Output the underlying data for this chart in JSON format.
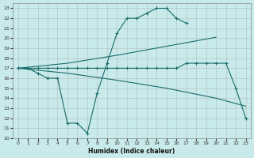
{
  "xlabel": "Humidex (Indice chaleur)",
  "bg_color": "#c8eaea",
  "line_color": "#1a6b6b",
  "grid_color": "#b0b0b0",
  "xlim": [
    -0.5,
    23.5
  ],
  "ylim": [
    10,
    23.5
  ],
  "xticks": [
    0,
    1,
    2,
    3,
    4,
    5,
    6,
    7,
    8,
    9,
    10,
    11,
    12,
    13,
    14,
    15,
    16,
    17,
    18,
    19,
    20,
    21,
    22,
    23
  ],
  "yticks": [
    10,
    11,
    12,
    13,
    14,
    15,
    16,
    17,
    18,
    19,
    20,
    21,
    22,
    23
  ],
  "lines": [
    {
      "x": [
        0,
        1,
        2,
        3,
        4,
        5,
        6,
        7,
        8,
        9,
        10,
        11,
        12,
        13,
        14,
        15,
        16,
        17
      ],
      "y": [
        17,
        17,
        16.5,
        16,
        16,
        11.5,
        11.5,
        10.5,
        14.5,
        17.5,
        20.5,
        22,
        22,
        22.5,
        23,
        23,
        22,
        21.5
      ],
      "marker": true
    },
    {
      "x": [
        0,
        5,
        10,
        15,
        20
      ],
      "y": [
        17,
        17.5,
        18.3,
        19.2,
        20.1
      ],
      "marker": false
    },
    {
      "x": [
        0,
        1,
        2,
        3,
        4,
        5,
        6,
        7,
        8,
        9,
        10,
        11,
        12,
        13,
        14,
        15,
        16,
        17,
        18,
        19,
        20,
        21,
        22,
        23
      ],
      "y": [
        17,
        17,
        17,
        17,
        17,
        17,
        17,
        17,
        17,
        17,
        17,
        17,
        17,
        17,
        17,
        17,
        17,
        17.5,
        17.5,
        17.5,
        17.5,
        17.5,
        15,
        12
      ],
      "marker": true
    },
    {
      "x": [
        0,
        5,
        10,
        15,
        20,
        23
      ],
      "y": [
        17,
        16.5,
        15.8,
        15.0,
        14.0,
        13.2
      ],
      "marker": false
    }
  ]
}
